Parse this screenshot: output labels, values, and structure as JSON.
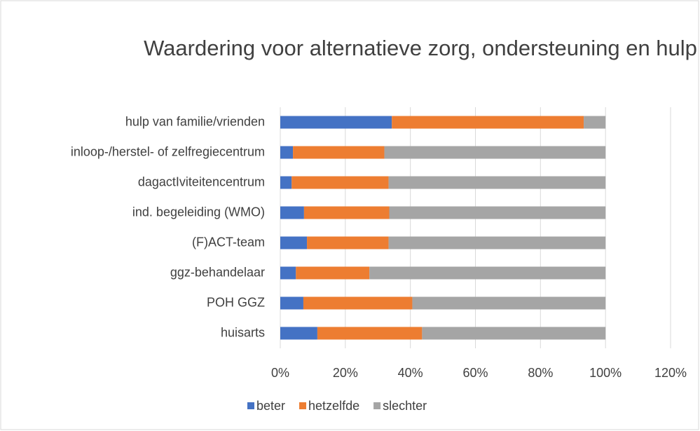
{
  "chart_data": {
    "type": "stacked_bar_horizontal",
    "title": "Waardering voor alternatieve zorg, ondersteuning en hulp",
    "categories": [
      "hulp van familie/vrienden",
      "inloop-/herstel- of zelfregiecentrum",
      "dagactIviteitencentrum",
      "ind. begeleiding (WMO)",
      "(F)ACT-team",
      "ggz-behandelaar",
      "POH GGZ",
      "huisarts"
    ],
    "series": [
      {
        "name": "beter",
        "color": "#4472c4",
        "values": [
          34.3,
          3.9,
          3.5,
          7.3,
          8.2,
          4.8,
          7.1,
          11.4
        ]
      },
      {
        "name": "hetzelfde",
        "color": "#ed7d31",
        "values": [
          59.0,
          28.1,
          29.8,
          26.2,
          25.1,
          22.6,
          33.5,
          32.2
        ]
      },
      {
        "name": "slechter",
        "color": "#a5a5a5",
        "values": [
          6.7,
          68.0,
          66.7,
          66.5,
          66.7,
          72.6,
          59.4,
          56.4
        ]
      }
    ],
    "xlim": [
      0,
      120
    ],
    "xticks": [
      {
        "value": 0,
        "label": "0%"
      },
      {
        "value": 20,
        "label": "20%"
      },
      {
        "value": 40,
        "label": "40%"
      },
      {
        "value": 60,
        "label": "60%"
      },
      {
        "value": 80,
        "label": "80%"
      },
      {
        "value": 100,
        "label": "100%"
      },
      {
        "value": 120,
        "label": "120%"
      }
    ],
    "grid": true,
    "legend": "bottom"
  }
}
